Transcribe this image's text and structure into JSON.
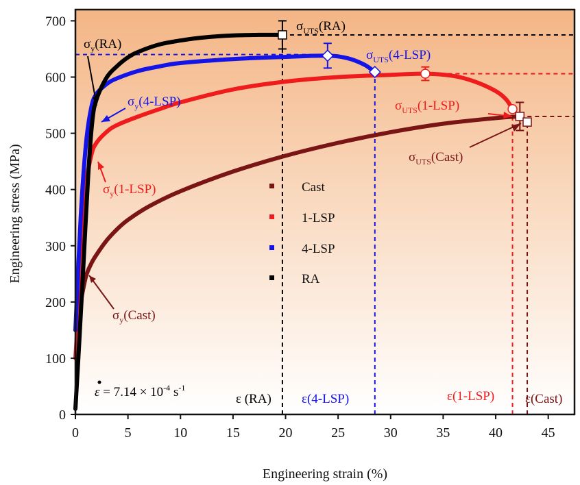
{
  "chart_data": {
    "type": "line",
    "xlabel": "Engineering strain (%)",
    "ylabel": "Engineering stress (MPa)",
    "xlim": [
      0,
      47.5
    ],
    "ylim": [
      0,
      720
    ],
    "xticks": [
      0,
      5,
      10,
      15,
      20,
      25,
      30,
      35,
      40,
      45
    ],
    "yticks": [
      0,
      100,
      200,
      300,
      400,
      500,
      600,
      700
    ],
    "grid": false,
    "background": "gradient orange (top) to white (bottom)",
    "legend_position": "center",
    "series": [
      {
        "name": "Cast",
        "color": "#7a1515",
        "x": [
          0,
          0.5,
          1,
          1.5,
          2,
          3,
          4,
          5,
          7,
          10,
          15,
          20,
          25,
          30,
          35,
          40,
          42.3
        ],
        "y": [
          150,
          200,
          245,
          268,
          284,
          310,
          330,
          346,
          370,
          397,
          432,
          460,
          483,
          502,
          517,
          527,
          530
        ]
      },
      {
        "name": "1-LSP",
        "color": "#ee1c1c",
        "x": [
          0,
          0.5,
          1,
          1.5,
          2,
          3,
          4,
          6,
          8,
          10,
          15,
          20,
          25,
          30,
          33.3,
          36,
          38,
          40,
          41,
          41.6
        ],
        "y": [
          100,
          250,
          400,
          460,
          483,
          503,
          515,
          530,
          543,
          555,
          578,
          592,
          600,
          604,
          606,
          602,
          592,
          575,
          560,
          543
        ]
      },
      {
        "name": "4-LSP",
        "color": "#1414e6",
        "x": [
          0,
          0.5,
          1,
          1.5,
          2,
          3,
          4,
          6,
          8,
          10,
          15,
          20,
          24,
          26,
          27.5,
          28.5
        ],
        "y": [
          150,
          350,
          480,
          545,
          570,
          588,
          598,
          611,
          619,
          625,
          632,
          636,
          638,
          633,
          622,
          609
        ]
      },
      {
        "name": "RA",
        "color": "#000000",
        "x": [
          0,
          0.4,
          0.8,
          1.2,
          1.6,
          2,
          3,
          4,
          5,
          6,
          8,
          10,
          12,
          15,
          17.5,
          19.7
        ],
        "y": [
          10,
          140,
          280,
          420,
          520,
          560,
          600,
          620,
          635,
          645,
          658,
          665,
          670,
          674,
          675,
          675
        ]
      }
    ],
    "uts_points": [
      {
        "series": "RA",
        "x": 19.7,
        "y": 675,
        "err": 25,
        "marker": "square"
      },
      {
        "series": "4-LSP",
        "x": 24,
        "y": 638,
        "err": 22,
        "marker": "diamond"
      },
      {
        "series": "4-LSP",
        "x": 28.5,
        "y": 609,
        "err": 0,
        "marker": "diamond"
      },
      {
        "series": "1-LSP",
        "x": 33.3,
        "y": 606,
        "err": 12,
        "marker": "circle"
      },
      {
        "series": "1-LSP",
        "x": 41.6,
        "y": 543,
        "err": 0,
        "marker": "circle"
      },
      {
        "series": "Cast",
        "x": 42.3,
        "y": 530,
        "err": 25,
        "marker": "square"
      },
      {
        "series": "Cast",
        "x": 43,
        "y": 520,
        "err": 0,
        "marker": "square"
      }
    ],
    "ref_lines": [
      {
        "kind": "h",
        "value": 675,
        "from": 19.7,
        "to": 47.5,
        "color": "#000000"
      },
      {
        "kind": "h",
        "value": 640,
        "from": 0,
        "to": 24,
        "color": "#1414e6"
      },
      {
        "kind": "h",
        "value": 606,
        "from": 33.3,
        "to": 47.5,
        "color": "#ee1c1c"
      },
      {
        "kind": "h",
        "value": 530,
        "from": 42.3,
        "to": 47.5,
        "color": "#7a1515"
      },
      {
        "kind": "v",
        "value": 19.7,
        "from": 0,
        "to": 675,
        "color": "#000000"
      },
      {
        "kind": "v",
        "value": 28.5,
        "from": 0,
        "to": 609,
        "color": "#1414e6"
      },
      {
        "kind": "v",
        "value": 41.6,
        "from": 0,
        "to": 543,
        "color": "#ee1c1c"
      },
      {
        "kind": "v",
        "value": 43,
        "from": 0,
        "to": 520,
        "color": "#7a1515"
      }
    ],
    "annotations": {
      "sy_ra": {
        "sym": "σ",
        "sub": "y",
        "text": "(RA)",
        "color": "#000000"
      },
      "sy_4lsp": {
        "sym": "σ",
        "sub": "y",
        "text": "(4-LSP)",
        "color": "#1414e6"
      },
      "sy_1lsp": {
        "sym": "σ",
        "sub": "y",
        "text": "(1-LSP)",
        "color": "#ee1c1c"
      },
      "sy_cast": {
        "sym": "σ",
        "sub": "y",
        "text": "(Cast)",
        "color": "#7a1515"
      },
      "suts_ra": {
        "sym": "σ",
        "sub": "UTS",
        "text": "(RA)",
        "color": "#000000"
      },
      "suts_4lsp": {
        "sym": "σ",
        "sub": "UTS",
        "text": "(4-LSP)",
        "color": "#1414e6"
      },
      "suts_1lsp": {
        "sym": "σ",
        "sub": "UTS",
        "text": "(1-LSP)",
        "color": "#ee1c1c"
      },
      "suts_cast": {
        "sym": "σ",
        "sub": "UTS",
        "text": "(Cast)",
        "color": "#7a1515"
      },
      "eps_ra": {
        "text": "ε (RA)",
        "color": "#000000"
      },
      "eps_4lsp": {
        "text": "ε(4-LSP)",
        "color": "#1414e6"
      },
      "eps_1lsp": {
        "text": "ε(1-LSP)",
        "color": "#ee1c1c"
      },
      "eps_cast": {
        "text": "ε(Cast)",
        "color": "#7a1515"
      },
      "strain_rate": {
        "sym": "ε",
        "eq": " = 7.14 × 10",
        "exp": "-4",
        "unit": " s",
        "unit_exp": "-1",
        "color": "#000000"
      }
    }
  }
}
